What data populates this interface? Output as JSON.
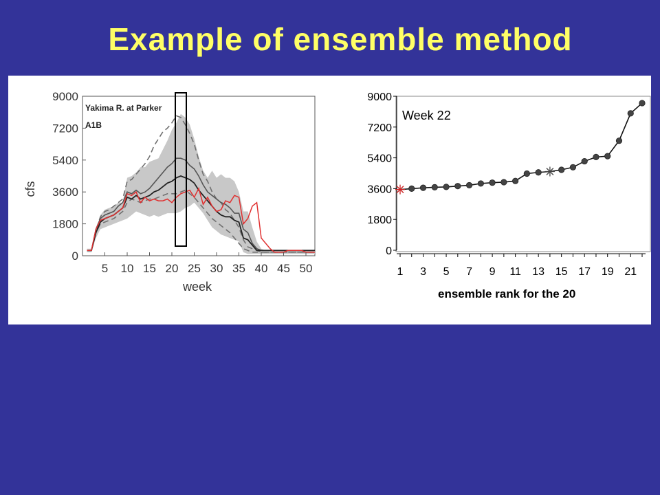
{
  "slide": {
    "title": "Example of ensemble method",
    "background": "#333399",
    "title_color": "#ffff66"
  },
  "chart_data": [
    {
      "type": "line",
      "title": "Yakima R. at Parker",
      "subtitle": "A1B",
      "xlabel": "week",
      "ylabel": "cfs",
      "xlim": [
        0,
        52
      ],
      "ylim": [
        0,
        9000
      ],
      "xticks": [
        5,
        10,
        15,
        20,
        25,
        30,
        35,
        40,
        45,
        50
      ],
      "yticks": [
        0,
        1800,
        3600,
        5400,
        7200,
        9000
      ],
      "highlight_week": 22,
      "x": [
        1,
        2,
        3,
        4,
        5,
        6,
        7,
        8,
        9,
        10,
        11,
        12,
        13,
        14,
        15,
        16,
        17,
        18,
        19,
        20,
        21,
        22,
        23,
        24,
        25,
        26,
        27,
        28,
        29,
        30,
        31,
        32,
        33,
        34,
        35,
        36,
        37,
        38,
        39,
        40,
        41,
        42,
        43,
        44,
        45,
        46,
        47,
        48,
        49,
        50,
        51,
        52
      ],
      "series": [
        {
          "role": "band_upper",
          "color": "#c8c8c8",
          "values": [
            400,
            400,
            1200,
            2300,
            2600,
            2700,
            2800,
            3000,
            3000,
            4400,
            4500,
            4700,
            5000,
            5000,
            5300,
            5400,
            5500,
            6000,
            6500,
            7100,
            7500,
            8000,
            7800,
            7400,
            6600,
            5600,
            4800,
            4400,
            4800,
            4400,
            4600,
            4400,
            4400,
            4200,
            3600,
            2500,
            2500,
            1600,
            800,
            400,
            300,
            300,
            300,
            300,
            300,
            300,
            300,
            300,
            300,
            300,
            300,
            300
          ]
        },
        {
          "role": "band_lower",
          "color": "#c8c8c8",
          "values": [
            200,
            200,
            1000,
            1500,
            1600,
            1700,
            1800,
            1900,
            2000,
            2100,
            2300,
            2500,
            2400,
            2300,
            2200,
            2300,
            2200,
            2300,
            2400,
            2400,
            2400,
            2500,
            2700,
            2800,
            3000,
            2700,
            2400,
            2000,
            1600,
            1400,
            1200,
            1100,
            1000,
            900,
            800,
            200,
            100,
            100,
            100,
            100,
            100,
            100,
            100,
            100,
            100,
            100,
            100,
            100,
            100,
            100,
            100,
            100
          ]
        },
        {
          "role": "ensemble_max_dashed",
          "color": "#707070",
          "values": [
            300,
            300,
            1400,
            2200,
            2500,
            2600,
            2800,
            3000,
            3200,
            4200,
            4300,
            4600,
            4900,
            5200,
            5600,
            6200,
            6600,
            7000,
            7200,
            7500,
            7900,
            7800,
            7400,
            6900,
            6300,
            5400,
            4600,
            4200,
            3600,
            3200,
            3000,
            2600,
            2400,
            2000,
            1600,
            900,
            500,
            400,
            300,
            200,
            200,
            200,
            200,
            200,
            200,
            200,
            200,
            200,
            200,
            200,
            200,
            200
          ]
        },
        {
          "role": "ensemble_min_dashed",
          "color": "#707070",
          "values": [
            300,
            300,
            1300,
            1800,
            1900,
            2000,
            2100,
            2300,
            2500,
            3000,
            3200,
            3100,
            3000,
            3100,
            3200,
            3200,
            3300,
            3400,
            3500,
            3500,
            3500,
            3600,
            3700,
            3500,
            3300,
            3000,
            2700,
            2400,
            2100,
            1900,
            1700,
            1500,
            1300,
            1000,
            700,
            400,
            300,
            200,
            200,
            200,
            200,
            200,
            200,
            200,
            200,
            200,
            200,
            200,
            200,
            200,
            200,
            200
          ]
        },
        {
          "role": "upper_quantile",
          "color": "#555555",
          "values": [
            300,
            300,
            1500,
            2100,
            2300,
            2400,
            2500,
            2800,
            3000,
            3600,
            3500,
            3700,
            3500,
            3600,
            3800,
            4100,
            4400,
            4700,
            5000,
            5200,
            5500,
            5500,
            5400,
            5100,
            4900,
            4500,
            4000,
            3600,
            3400,
            3200,
            3000,
            2900,
            2700,
            2400,
            2400,
            1500,
            1300,
            700,
            400,
            300,
            300,
            300,
            300,
            300,
            300,
            300,
            300,
            300,
            300,
            300,
            300,
            300
          ]
        },
        {
          "role": "median",
          "color": "#222222",
          "values": [
            300,
            300,
            1300,
            1900,
            2100,
            2200,
            2300,
            2500,
            2700,
            3300,
            3200,
            3400,
            3200,
            3300,
            3400,
            3600,
            3700,
            3900,
            4100,
            4200,
            4400,
            4500,
            4400,
            4300,
            4100,
            3700,
            3400,
            3100,
            2800,
            2500,
            2300,
            2200,
            2200,
            2000,
            1900,
            1000,
            900,
            600,
            300,
            300,
            300,
            300,
            300,
            300,
            300,
            300,
            300,
            300,
            300,
            300,
            300,
            300
          ]
        },
        {
          "name": "historical",
          "role": "historical_red",
          "color": "#e03030",
          "values": [
            300,
            300,
            1500,
            2000,
            2100,
            2200,
            2300,
            2500,
            2700,
            3500,
            3400,
            3600,
            3000,
            3300,
            3100,
            3200,
            3100,
            3100,
            3200,
            3000,
            3300,
            3500,
            3600,
            3700,
            3300,
            3800,
            2900,
            3300,
            2800,
            2500,
            2600,
            3100,
            3000,
            3400,
            3300,
            1800,
            2100,
            2800,
            3000,
            1000,
            700,
            400,
            200,
            200,
            200,
            300,
            300,
            300,
            300,
            200,
            200,
            200
          ]
        }
      ]
    },
    {
      "type": "scatter",
      "title": "Week 22",
      "xlabel": "ensemble rank for the 20",
      "ylabel": "",
      "xlim": [
        1,
        22
      ],
      "ylim": [
        0,
        9000
      ],
      "xticks": [
        1,
        3,
        5,
        7,
        9,
        11,
        13,
        15,
        17,
        19,
        21
      ],
      "yticks": [
        0,
        1800,
        3600,
        5400,
        7200,
        9000
      ],
      "x": [
        1,
        2,
        3,
        4,
        5,
        6,
        7,
        8,
        9,
        10,
        11,
        12,
        13,
        14,
        15,
        16,
        17,
        18,
        19,
        20,
        21,
        22
      ],
      "values": [
        3550,
        3600,
        3650,
        3680,
        3700,
        3750,
        3800,
        3900,
        3950,
        3980,
        4050,
        4480,
        4550,
        4600,
        4700,
        4850,
        5200,
        5450,
        5500,
        6400,
        8000,
        8600
      ],
      "marker_color": "#444444",
      "special_points": [
        {
          "rank": 1,
          "value": 3550,
          "marker": "star",
          "color": "#cc2222"
        },
        {
          "rank": 14,
          "value": 4600,
          "marker": "star",
          "color": "#444444"
        }
      ]
    }
  ]
}
